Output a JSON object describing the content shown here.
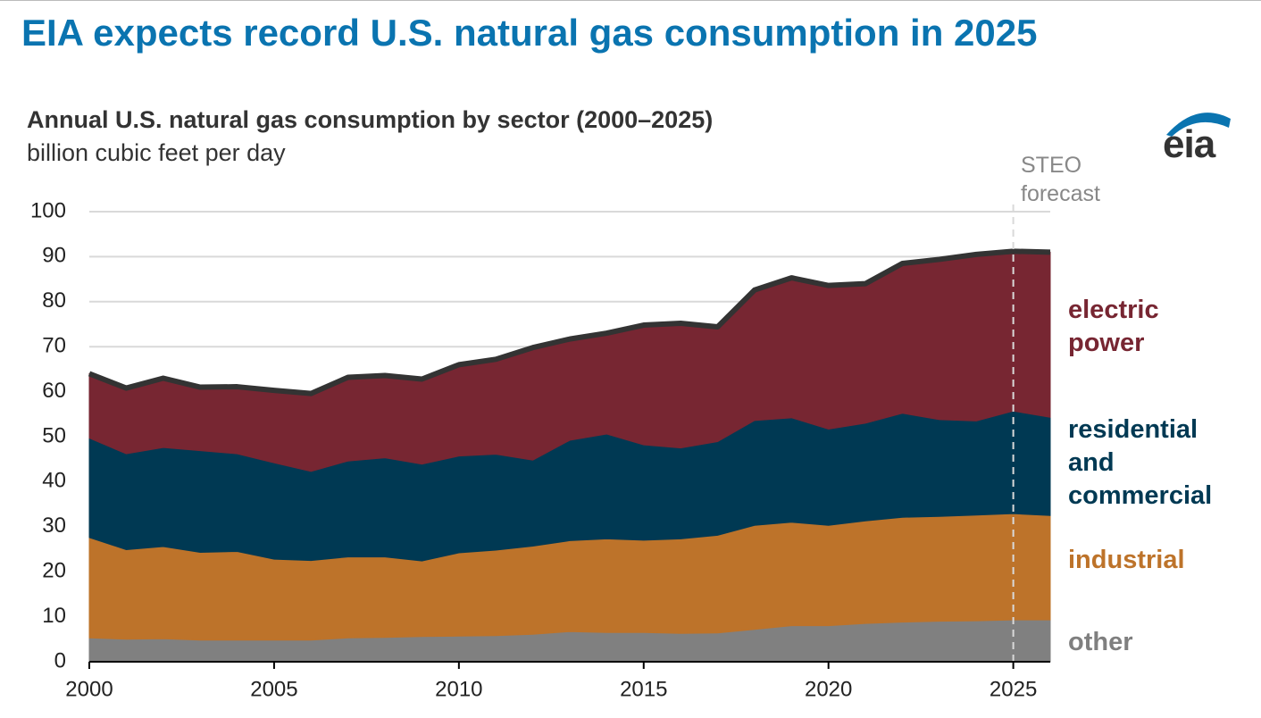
{
  "header": {
    "title": "EIA expects record U.S. natural gas consumption in 2025",
    "logo": "eia"
  },
  "chart_data": {
    "type": "stacked_area",
    "title": "Annual U.S. natural gas consumption by sector (2000–2025)",
    "subtitle": "billion cubic feet per day",
    "x": [
      2000,
      2001,
      2002,
      2003,
      2004,
      2005,
      2006,
      2007,
      2008,
      2009,
      2010,
      2011,
      2012,
      2013,
      2014,
      2015,
      2016,
      2017,
      2018,
      2019,
      2020,
      2021,
      2022,
      2023,
      2024,
      2025,
      2026
    ],
    "xlim": [
      2000,
      2026
    ],
    "xticks": [
      2000,
      2005,
      2010,
      2015,
      2020,
      2025
    ],
    "ylim": [
      0,
      100
    ],
    "yticks": [
      0,
      10,
      20,
      30,
      40,
      50,
      60,
      70,
      80,
      90,
      100
    ],
    "grid": true,
    "series": [
      {
        "name": "other",
        "color": "#808080",
        "label_color": "#7f7f7f",
        "values": [
          5.3,
          5.0,
          5.1,
          4.8,
          4.8,
          4.8,
          4.8,
          5.3,
          5.4,
          5.6,
          5.7,
          5.8,
          6.1,
          6.7,
          6.5,
          6.5,
          6.3,
          6.4,
          7.2,
          8.0,
          8.0,
          8.5,
          8.8,
          9.0,
          9.1,
          9.3,
          9.3
        ]
      },
      {
        "name": "industrial",
        "color": "#bd732a",
        "label_color": "#bd732a",
        "values": [
          22.3,
          19.9,
          20.5,
          19.5,
          19.7,
          18.0,
          17.7,
          18.0,
          17.9,
          16.8,
          18.5,
          19.0,
          19.6,
          20.2,
          20.8,
          20.5,
          21.0,
          21.7,
          23.1,
          23.0,
          22.3,
          22.8,
          23.3,
          23.3,
          23.5,
          23.6,
          23.2
        ]
      },
      {
        "name": "residential and commercial",
        "color": "#003953",
        "label_color": "#003953",
        "values": [
          22.1,
          21.3,
          22.0,
          22.6,
          21.7,
          21.4,
          19.8,
          21.3,
          22.0,
          21.5,
          21.5,
          21.3,
          19.1,
          22.3,
          23.3,
          21.2,
          20.2,
          20.8,
          23.3,
          23.2,
          21.4,
          21.7,
          23.1,
          21.5,
          20.9,
          22.8,
          21.8
        ]
      },
      {
        "name": "electric power",
        "color": "#772632",
        "label_color": "#772632",
        "values": [
          14.3,
          14.6,
          15.4,
          14.1,
          14.9,
          16.1,
          17.3,
          18.6,
          18.3,
          18.9,
          20.3,
          21.1,
          25.0,
          22.5,
          22.4,
          26.6,
          27.7,
          25.5,
          29.0,
          31.1,
          31.9,
          31.0,
          33.3,
          35.6,
          37.0,
          35.5,
          36.7
        ]
      }
    ],
    "total_line_color": "#333333",
    "annotations": [
      {
        "text": "STEO forecast",
        "x": 2025
      }
    ]
  }
}
